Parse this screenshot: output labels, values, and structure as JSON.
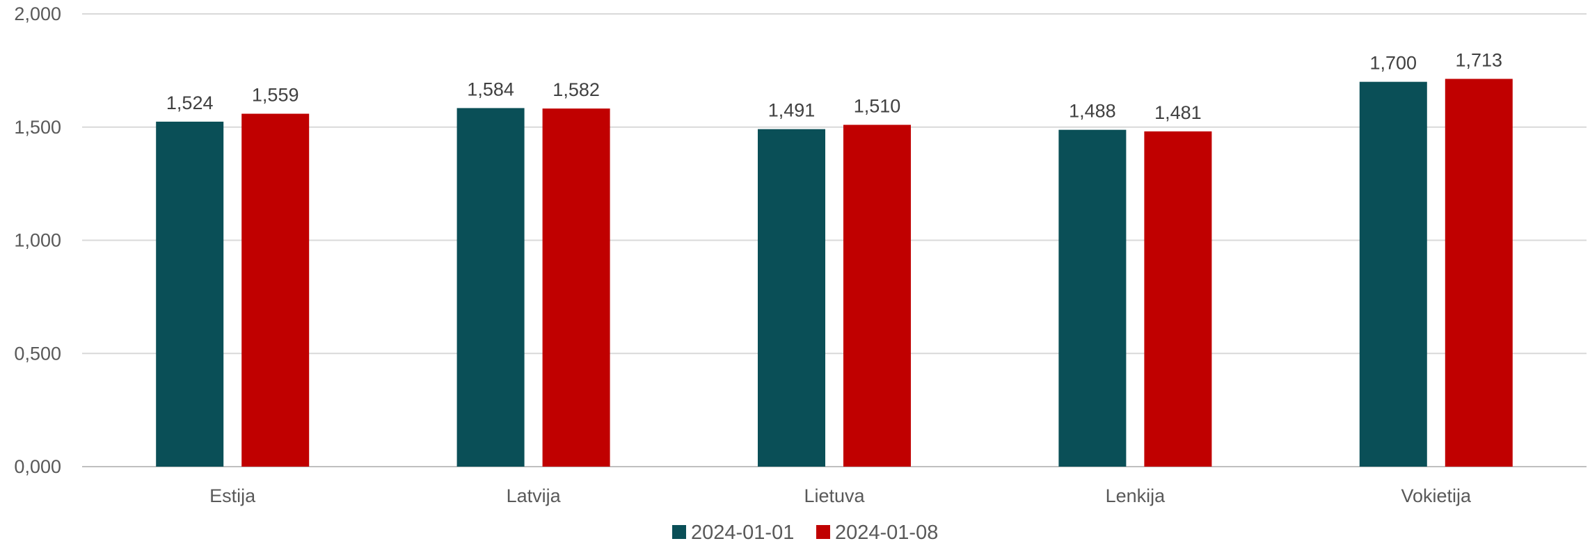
{
  "chart_data": {
    "type": "bar",
    "title": "",
    "xlabel": "",
    "ylabel": "",
    "categories": [
      "Estija",
      "Latvija",
      "Lietuva",
      "Lenkija",
      "Vokietija"
    ],
    "series": [
      {
        "name": "2024-01-01",
        "color": "#0a4f57",
        "values": [
          1.524,
          1.584,
          1.491,
          1.488,
          1.7
        ],
        "labels": [
          "1,524",
          "1,584",
          "1,491",
          "1,488",
          "1,700"
        ]
      },
      {
        "name": "2024-01-08",
        "color": "#c00000",
        "values": [
          1.559,
          1.582,
          1.51,
          1.481,
          1.713
        ],
        "labels": [
          "1,559",
          "1,582",
          "1,510",
          "1,481",
          "1,713"
        ]
      }
    ],
    "ylim": [
      0,
      2
    ],
    "yticks": [
      0,
      0.5,
      1,
      1.5,
      2
    ],
    "ytick_labels": [
      "0,000",
      "0,500",
      "1,000",
      "1,500",
      "2,000"
    ],
    "grid": true,
    "legend_position": "bottom"
  }
}
